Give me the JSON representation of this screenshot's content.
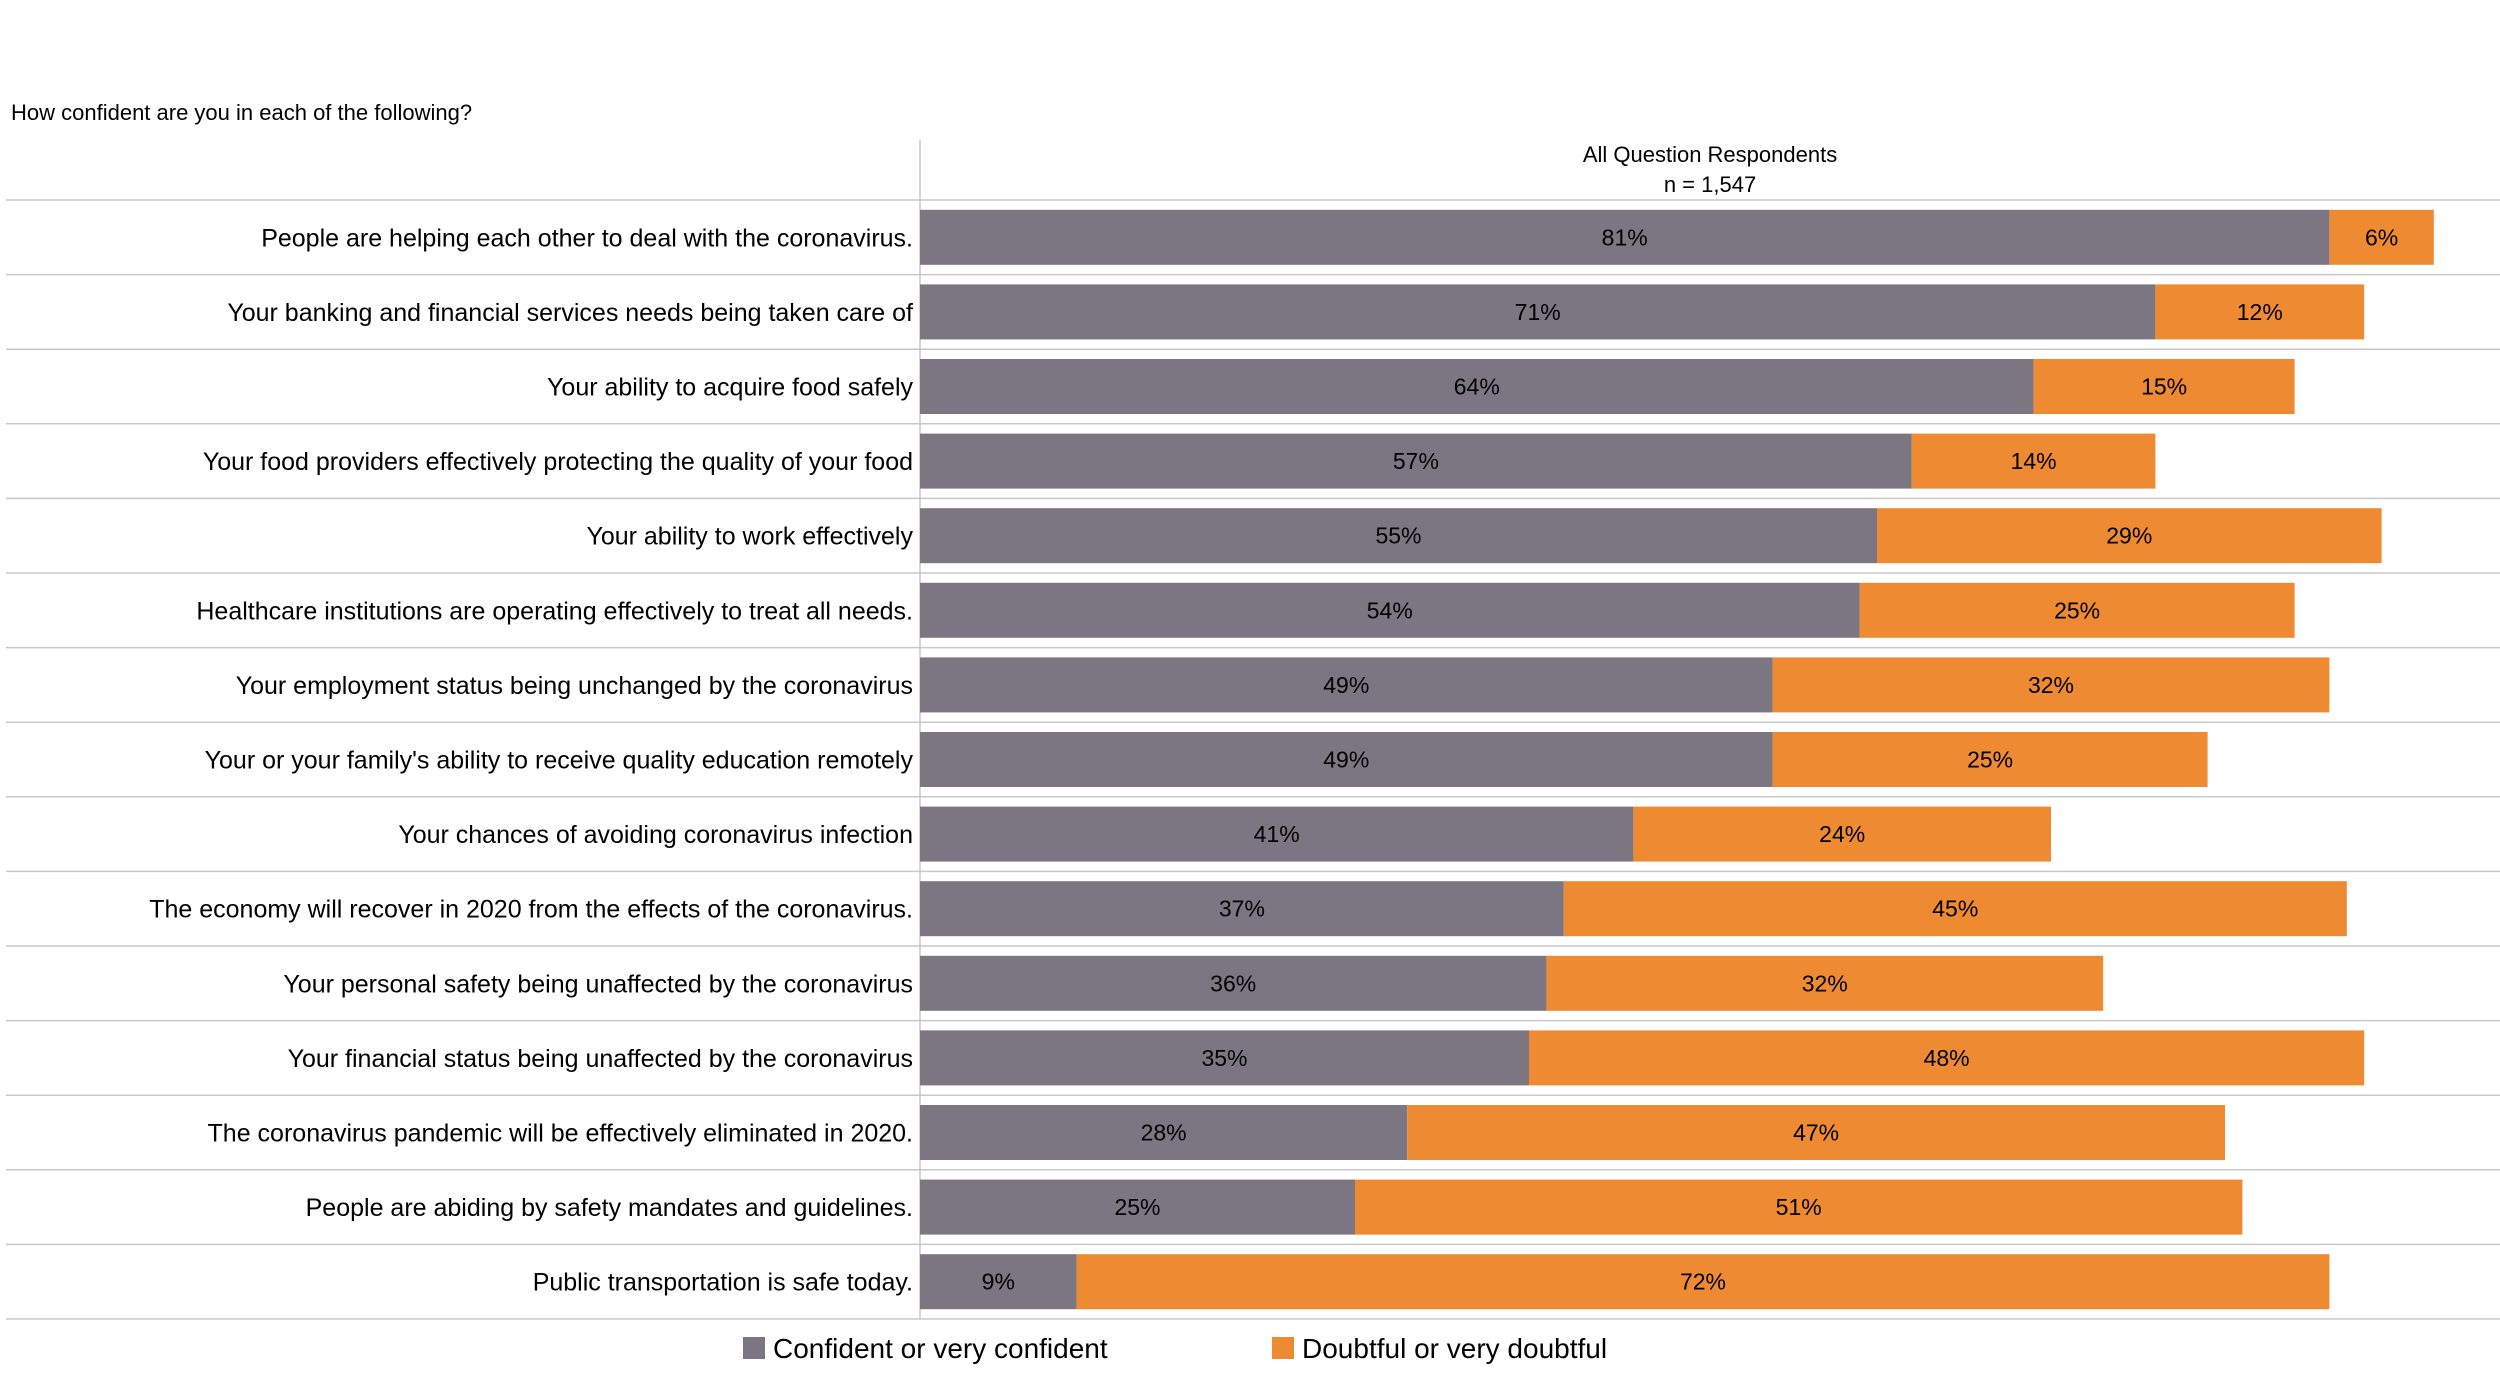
{
  "question": "How confident are you in each of the following?",
  "chart_data": {
    "type": "bar",
    "orientation": "horizontal",
    "stacked": true,
    "header": {
      "title": "All Question Respondents",
      "subtitle": "n = 1,547"
    },
    "categories": [
      "People are helping each other to deal with the coronavirus.",
      "Your banking and financial services needs being taken care of",
      "Your ability to acquire food safely",
      "Your food providers effectively protecting the quality of your food",
      "Your ability to work effectively",
      "Healthcare institutions are operating effectively to treat all needs.",
      "Your employment status being unchanged by the coronavirus",
      "Your or your family's ability to receive quality education remotely",
      "Your chances of avoiding coronavirus infection",
      "The economy will recover in 2020 from the effects of the coronavirus.",
      "Your personal safety being unaffected by the coronavirus",
      "Your financial status being unaffected by the coronavirus",
      "The coronavirus pandemic will be effectively eliminated in 2020.",
      "People are abiding by safety mandates and guidelines.",
      "Public transportation is safe today."
    ],
    "series": [
      {
        "name": "Confident or very confident",
        "color": "#7b7681",
        "values": [
          81,
          71,
          64,
          57,
          55,
          54,
          49,
          49,
          41,
          37,
          36,
          35,
          28,
          25,
          9
        ]
      },
      {
        "name": "Doubtful or very doubtful",
        "color": "#ee8a32",
        "values": [
          6,
          12,
          15,
          14,
          29,
          25,
          32,
          25,
          24,
          45,
          32,
          48,
          47,
          51,
          72
        ]
      }
    ],
    "value_suffix": "%",
    "xlim": [
      0,
      100
    ],
    "legend": "bottom"
  }
}
